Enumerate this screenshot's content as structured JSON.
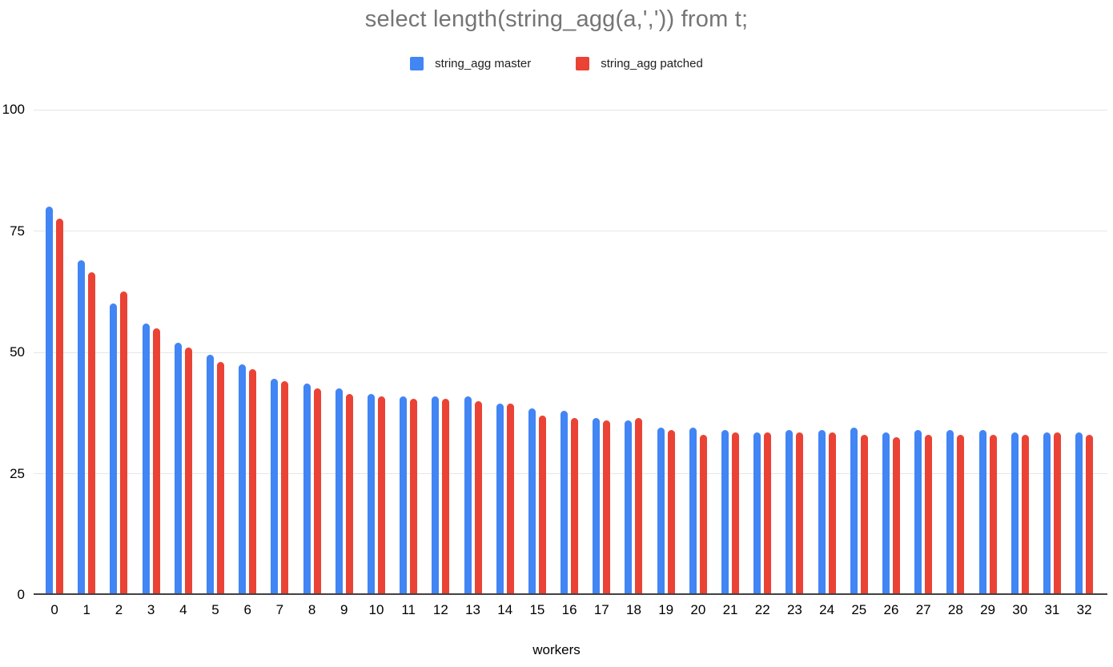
{
  "chart_data": {
    "type": "bar",
    "title": "select length(string_agg(a,',')) from t;",
    "xlabel": "workers",
    "ylabel": "",
    "ylim": [
      0,
      100
    ],
    "yticks": [
      0,
      25,
      50,
      75,
      100
    ],
    "grid": true,
    "legend_position": "top",
    "categories": [
      "0",
      "1",
      "2",
      "3",
      "4",
      "5",
      "6",
      "7",
      "8",
      "9",
      "10",
      "11",
      "12",
      "13",
      "14",
      "15",
      "16",
      "17",
      "18",
      "19",
      "20",
      "21",
      "22",
      "23",
      "24",
      "25",
      "26",
      "27",
      "28",
      "29",
      "30",
      "31",
      "32"
    ],
    "series": [
      {
        "name": "string_agg master",
        "color": "#4285f4",
        "values": [
          80,
          69,
          60,
          56,
          52,
          49.5,
          47.5,
          44.5,
          43.5,
          42.5,
          41.5,
          41,
          41,
          41,
          39.5,
          38.5,
          38,
          36.5,
          36,
          34.5,
          34.5,
          34,
          33.5,
          34,
          34,
          34.5,
          33.5,
          34,
          34,
          34,
          33.5,
          33.5,
          33.5
        ]
      },
      {
        "name": "string_agg patched",
        "color": "#ea4335",
        "values": [
          77.5,
          66.5,
          62.5,
          55,
          51,
          48,
          46.5,
          44,
          42.5,
          41.5,
          41,
          40.5,
          40.5,
          40,
          39.5,
          37,
          36.5,
          36,
          36.5,
          34,
          33,
          33.5,
          33.5,
          33.5,
          33.5,
          33,
          32.5,
          33,
          33,
          33,
          33,
          33.5,
          33
        ]
      }
    ]
  },
  "colors": {
    "master": "#4285f4",
    "patched": "#ea4335",
    "title_text": "#757575",
    "axis_text": "#000000",
    "gridline": "#e6e6e6",
    "baseline": "#424242",
    "background": "#ffffff"
  }
}
